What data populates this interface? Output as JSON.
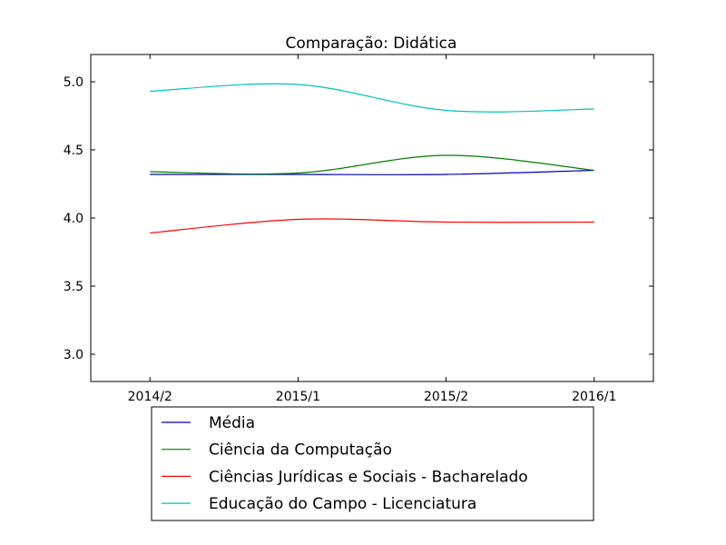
{
  "chart_data": {
    "type": "line",
    "title": "Comparação: Didática",
    "xlabel": "",
    "ylabel": "",
    "categories": [
      "2014/2",
      "2015/1",
      "2015/2",
      "2016/1"
    ],
    "xlim": [
      -0.4,
      3.4
    ],
    "ylim": [
      2.8,
      5.2
    ],
    "yticks": [
      "3.0",
      "3.5",
      "4.0",
      "4.5",
      "5.0"
    ],
    "grid": false,
    "legend_position": "bottom",
    "series": [
      {
        "name": "Média",
        "color": "#0000bf",
        "values": [
          4.32,
          4.32,
          4.32,
          4.35
        ]
      },
      {
        "name": "Ciência da Computação",
        "color": "#007f00",
        "values": [
          4.34,
          4.33,
          4.46,
          4.35
        ]
      },
      {
        "name": "Ciências Jurídicas e Sociais - Bacharelado",
        "color": "#ff0000",
        "values": [
          3.89,
          3.99,
          3.97,
          3.97
        ]
      },
      {
        "name": "Educação do Campo - Licenciatura",
        "color": "#00bfbf",
        "values": [
          4.93,
          4.98,
          4.79,
          4.8
        ]
      }
    ]
  }
}
